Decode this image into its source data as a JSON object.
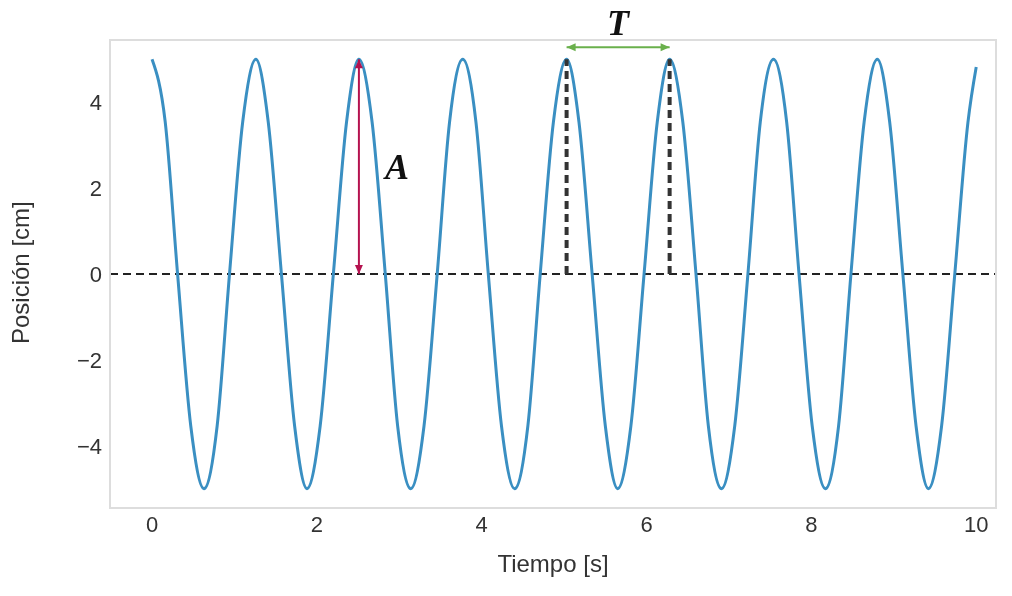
{
  "chart_data": {
    "type": "line",
    "xlabel": "Tiempo [s]",
    "ylabel": "Posición [cm]",
    "xlim": [
      -0.51,
      10.24
    ],
    "ylim": [
      -5.45,
      5.45
    ],
    "xticks": [
      0,
      2,
      4,
      6,
      8,
      10
    ],
    "yticks": [
      -4,
      -2,
      0,
      2,
      4
    ],
    "marker": "none",
    "line_style": "solid",
    "series": [
      {
        "color": "#3a8fc2",
        "x": [
          0,
          0.16,
          0.31,
          0.47,
          0.63,
          0.79,
          0.94,
          1.1,
          1.26,
          1.41,
          1.57,
          1.73,
          1.88,
          2.04,
          2.2,
          2.36,
          2.51,
          2.67,
          2.83,
          2.98,
          3.14,
          3.3,
          3.46,
          3.61,
          3.77,
          3.93,
          4.08,
          4.24,
          4.4,
          4.56,
          4.71,
          4.87,
          5.03,
          5.18,
          5.34,
          5.5,
          5.65,
          5.81,
          5.97,
          6.13,
          6.28,
          6.44,
          6.6,
          6.75,
          6.91,
          7.07,
          7.23,
          7.38,
          7.54,
          7.7,
          7.85,
          8.01,
          8.17,
          8.33,
          8.48,
          8.64,
          8.8,
          8.95,
          9.11,
          9.27,
          9.42,
          9.58,
          9.74,
          9.9,
          10.0
        ],
        "values": [
          5,
          3.54,
          0,
          -3.54,
          -5,
          -3.54,
          0,
          3.54,
          5,
          3.54,
          0,
          -3.54,
          -5,
          -3.54,
          0,
          3.54,
          5,
          3.54,
          0,
          -3.54,
          -5,
          -3.54,
          0,
          3.54,
          5,
          3.54,
          0,
          -3.54,
          -5,
          -3.54,
          0,
          3.54,
          5,
          3.54,
          0,
          -3.54,
          -5,
          -3.54,
          0,
          3.54,
          5,
          3.54,
          0,
          -3.54,
          -5,
          -3.54,
          0,
          3.54,
          5,
          3.54,
          0,
          -3.54,
          -5,
          -3.54,
          0,
          3.54,
          5,
          3.54,
          0,
          -3.54,
          -5,
          -3.54,
          0,
          3.54,
          4.82
        ]
      },
      {
        "type": "line",
        "color": "#333333",
        "line_style": "dashed",
        "x": [
          5.03,
          5.03
        ],
        "values": [
          0,
          5
        ]
      },
      {
        "type": "line",
        "color": "#333333",
        "line_style": "dashed",
        "x": [
          6.28,
          6.28
        ],
        "values": [
          0,
          5
        ]
      }
    ],
    "ref_lines": [
      {
        "axis": "y",
        "value": 0,
        "color": "#222222",
        "line_style": "dashed"
      }
    ],
    "annotations": [
      "A",
      "T"
    ]
  }
}
